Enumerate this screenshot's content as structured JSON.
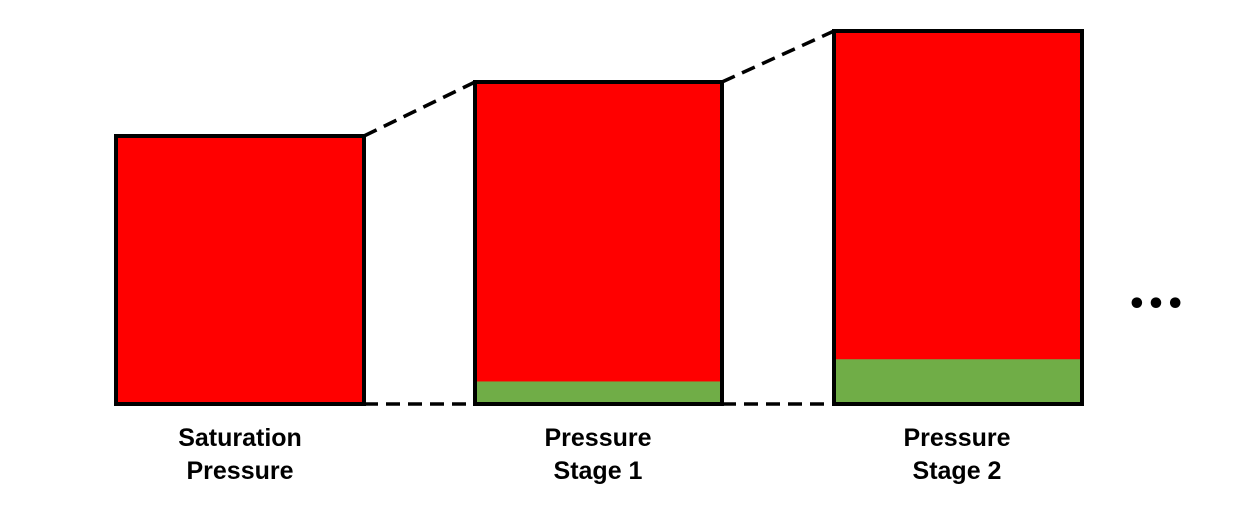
{
  "colors": {
    "liquid": "#ff0000",
    "gas": "#70ad47",
    "outline": "#000000",
    "connector": "#000000",
    "background": "#ffffff"
  },
  "stages": [
    {
      "id": "saturation",
      "label_line1": "Saturation",
      "label_line2": "Pressure",
      "gas_fraction": 0.0
    },
    {
      "id": "stage-1",
      "label_line1": "Pressure",
      "label_line2": "Stage 1",
      "gas_fraction": 0.07
    },
    {
      "id": "stage-2",
      "label_line1": "Pressure",
      "label_line2": "Stage 2",
      "gas_fraction": 0.12
    }
  ],
  "continuation": "•••"
}
